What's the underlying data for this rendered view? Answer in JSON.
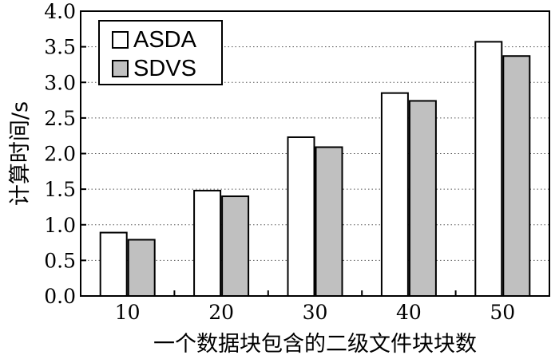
{
  "chart_data": {
    "type": "bar",
    "categories": [
      "10",
      "20",
      "30",
      "40",
      "50"
    ],
    "series": [
      {
        "name": "ASDA",
        "color": "#ffffff",
        "values": [
          0.89,
          1.48,
          2.23,
          2.85,
          3.57
        ]
      },
      {
        "name": "SDVS",
        "color": "#c0c0c0",
        "values": [
          0.79,
          1.4,
          2.09,
          2.74,
          3.37
        ]
      }
    ],
    "xlabel": "一个数据块包含的二级文件块块数",
    "ylabel": "计算时间/s",
    "ylim": [
      0,
      4.0
    ],
    "yticks": [
      "0.0",
      "0.5",
      "1.0",
      "1.5",
      "2.0",
      "2.5",
      "3.0",
      "3.5",
      "4.0"
    ],
    "grid": "horizontal-dotted",
    "legend": "top-left"
  }
}
